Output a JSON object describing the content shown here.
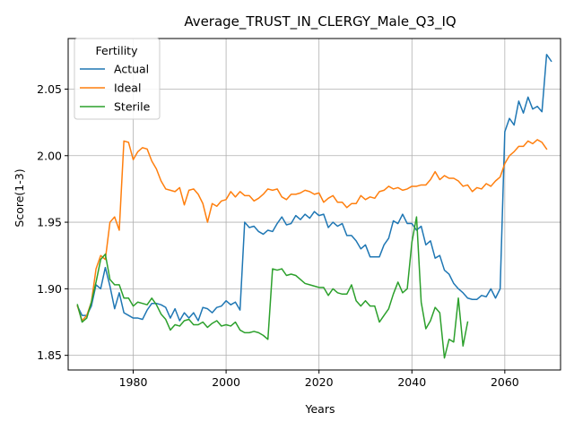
{
  "chart_data": {
    "type": "line",
    "title": "Average_TRUST_IN_CLERGY_Male_Q3_IQ",
    "xlabel": "Years",
    "ylabel": "Score(1-3)",
    "xlim": [
      1966,
      2072
    ],
    "ylim": [
      1.839,
      2.088
    ],
    "xticks": [
      1980,
      2000,
      2020,
      2040,
      2060
    ],
    "yticks": [
      1.85,
      1.9,
      1.95,
      2.0,
      2.05
    ],
    "xtick_labels": [
      "1980",
      "2000",
      "2020",
      "2040",
      "2060"
    ],
    "ytick_labels": [
      "1.85",
      "1.90",
      "1.95",
      "2.00",
      "2.05"
    ],
    "grid": true,
    "legend": {
      "title": "Fertility",
      "placement": "top-left"
    },
    "x_start": 1968,
    "series": [
      {
        "name": "Actual",
        "color": "#1f77b4",
        "values": [
          1.887,
          1.88,
          1.88,
          1.887,
          1.903,
          1.9,
          1.916,
          1.902,
          1.885,
          1.897,
          1.882,
          1.88,
          1.878,
          1.878,
          1.877,
          1.884,
          1.889,
          1.889,
          1.888,
          1.886,
          1.878,
          1.885,
          1.876,
          1.882,
          1.878,
          1.882,
          1.876,
          1.886,
          1.885,
          1.882,
          1.886,
          1.887,
          1.891,
          1.888,
          1.89,
          1.884,
          1.95,
          1.946,
          1.947,
          1.943,
          1.941,
          1.944,
          1.943,
          1.949,
          1.954,
          1.948,
          1.949,
          1.955,
          1.952,
          1.956,
          1.953,
          1.958,
          1.955,
          1.956,
          1.946,
          1.95,
          1.947,
          1.949,
          1.94,
          1.94,
          1.936,
          1.93,
          1.933,
          1.924,
          1.924,
          1.924,
          1.933,
          1.938,
          1.951,
          1.949,
          1.956,
          1.949,
          1.949,
          1.944,
          1.947,
          1.933,
          1.936,
          1.923,
          1.925,
          1.914,
          1.911,
          1.904,
          1.9,
          1.897,
          1.893,
          1.892,
          1.892,
          1.895,
          1.894,
          1.9,
          1.893,
          1.9,
          2.018,
          2.028,
          2.023,
          2.041,
          2.032,
          2.044,
          2.035,
          2.037,
          2.033,
          2.076,
          2.071
        ]
      },
      {
        "name": "Ideal",
        "color": "#ff7f0e",
        "values": [
          1.887,
          1.876,
          1.88,
          1.89,
          1.915,
          1.925,
          1.922,
          1.95,
          1.954,
          1.944,
          2.011,
          2.01,
          1.997,
          2.003,
          2.006,
          2.005,
          1.996,
          1.99,
          1.981,
          1.975,
          1.974,
          1.973,
          1.976,
          1.963,
          1.974,
          1.975,
          1.971,
          1.964,
          1.95,
          1.964,
          1.962,
          1.966,
          1.967,
          1.973,
          1.969,
          1.973,
          1.97,
          1.97,
          1.966,
          1.968,
          1.971,
          1.975,
          1.974,
          1.975,
          1.969,
          1.967,
          1.971,
          1.971,
          1.972,
          1.974,
          1.973,
          1.971,
          1.972,
          1.965,
          1.968,
          1.97,
          1.965,
          1.965,
          1.961,
          1.964,
          1.964,
          1.97,
          1.967,
          1.969,
          1.968,
          1.973,
          1.974,
          1.977,
          1.975,
          1.976,
          1.974,
          1.975,
          1.977,
          1.977,
          1.978,
          1.978,
          1.982,
          1.988,
          1.982,
          1.985,
          1.983,
          1.983,
          1.981,
          1.977,
          1.978,
          1.973,
          1.976,
          1.975,
          1.979,
          1.977,
          1.981,
          1.984,
          1.994,
          2.0,
          2.003,
          2.007,
          2.007,
          2.011,
          2.009,
          2.012,
          2.01,
          2.005
        ]
      },
      {
        "name": "Sterile",
        "color": "#2ca02c",
        "values": [
          1.888,
          1.875,
          1.878,
          1.89,
          1.905,
          1.922,
          1.926,
          1.907,
          1.903,
          1.903,
          1.893,
          1.893,
          1.887,
          1.89,
          1.889,
          1.888,
          1.893,
          1.888,
          1.881,
          1.877,
          1.869,
          1.873,
          1.872,
          1.876,
          1.877,
          1.873,
          1.873,
          1.875,
          1.871,
          1.874,
          1.876,
          1.872,
          1.873,
          1.872,
          1.875,
          1.869,
          1.867,
          1.867,
          1.868,
          1.867,
          1.865,
          1.862,
          1.915,
          1.914,
          1.915,
          1.91,
          1.911,
          1.91,
          1.907,
          1.904,
          1.903,
          1.902,
          1.901,
          1.901,
          1.895,
          1.9,
          1.897,
          1.896,
          1.896,
          1.903,
          1.891,
          1.887,
          1.891,
          1.887,
          1.887,
          1.875,
          1.88,
          1.885,
          1.896,
          1.905,
          1.897,
          1.9,
          1.935,
          1.954,
          1.89,
          1.87,
          1.876,
          1.886,
          1.882,
          1.848,
          1.862,
          1.86,
          1.893,
          1.857,
          1.875
        ]
      }
    ]
  }
}
